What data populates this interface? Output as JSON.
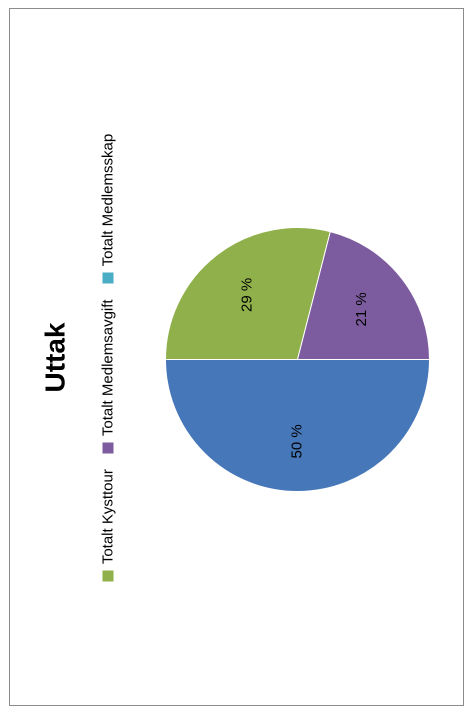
{
  "chart_data": {
    "type": "pie",
    "title": "Uttak",
    "legend_placement": "top",
    "slices": [
      {
        "name": "Totalt Kysttour",
        "value": 29,
        "label": "29 %",
        "color": "#8fb04a"
      },
      {
        "name": "Totalt Medlemsavgift",
        "value": 21,
        "label": "21 %",
        "color": "#7c5c9e"
      },
      {
        "name": "Totalt Medlemsskap",
        "value": 50,
        "label": "50 %",
        "color": "#4677b8"
      }
    ],
    "legend_colors": [
      "#8fb04a",
      "#7c5c9e",
      "#4aacc5"
    ]
  }
}
